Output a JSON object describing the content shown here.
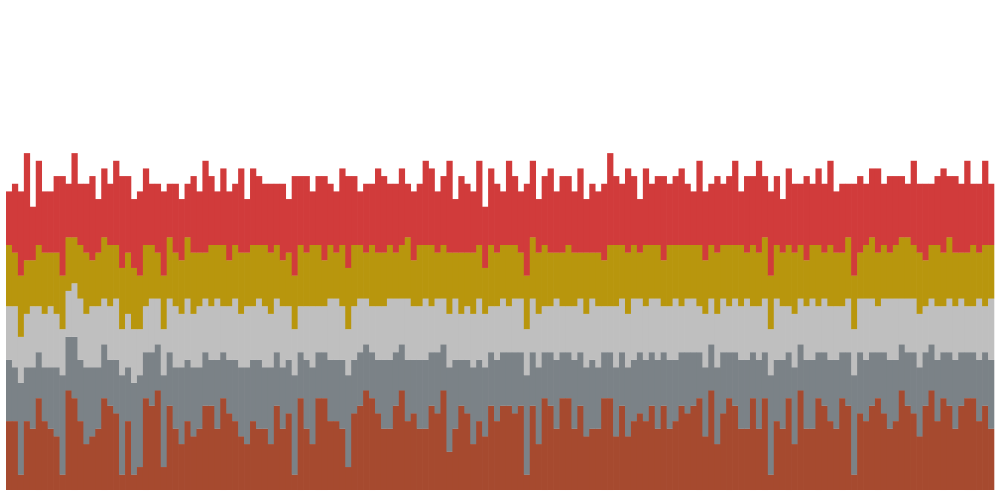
{
  "chart_data": {
    "type": "bar",
    "stacked": true,
    "x_count": 166,
    "ylim": [
      0,
      64
    ],
    "grid": false,
    "legend": "none",
    "series": [
      {
        "color": "#a64a2f",
        "values": [
          9,
          9,
          2,
          9,
          8,
          12,
          9,
          8,
          7,
          2,
          13,
          12,
          9,
          6,
          7,
          8,
          12,
          11,
          10,
          2,
          9,
          2,
          3,
          12,
          11,
          13,
          3,
          11,
          8,
          6,
          9,
          7,
          8,
          11,
          11,
          8,
          12,
          10,
          9,
          7,
          6,
          9,
          8,
          8,
          6,
          11,
          8,
          10,
          2,
          12,
          8,
          6,
          12,
          12,
          9,
          9,
          8,
          3,
          10,
          11,
          13,
          12,
          10,
          8,
          8,
          11,
          13,
          9,
          10,
          8,
          8,
          11,
          10,
          13,
          5,
          8,
          11,
          10,
          6,
          9,
          7,
          11,
          9,
          11,
          11,
          10,
          11,
          2,
          11,
          6,
          12,
          11,
          8,
          12,
          12,
          8,
          11,
          7,
          8,
          8,
          12,
          12,
          7,
          11,
          7,
          9,
          10,
          9,
          11,
          8,
          11,
          8,
          9,
          11,
          10,
          11,
          12,
          7,
          13,
          6,
          10,
          12,
          11,
          8,
          8,
          12,
          8,
          12,
          2,
          9,
          8,
          12,
          6,
          13,
          8,
          8,
          12,
          11,
          9,
          8,
          12,
          11,
          2,
          10,
          9,
          11,
          12,
          10,
          8,
          9,
          13,
          11,
          10,
          7,
          11,
          13,
          9,
          12,
          11,
          8,
          11,
          12,
          12,
          9,
          11,
          8
        ]
      },
      {
        "color": "#7b8287",
        "values": [
          8,
          7,
          12,
          7,
          8,
          6,
          7,
          8,
          9,
          13,
          7,
          8,
          8,
          10,
          9,
          8,
          7,
          6,
          7,
          13,
          7,
          12,
          12,
          6,
          7,
          6,
          12,
          7,
          8,
          10,
          8,
          9,
          8,
          7,
          6,
          9,
          6,
          7,
          8,
          9,
          10,
          8,
          9,
          8,
          10,
          7,
          8,
          7,
          13,
          6,
          9,
          10,
          6,
          6,
          8,
          8,
          9,
          12,
          7,
          7,
          6,
          6,
          7,
          9,
          9,
          7,
          6,
          8,
          7,
          9,
          9,
          7,
          8,
          6,
          11,
          9,
          6,
          7,
          10,
          8,
          9,
          7,
          8,
          7,
          7,
          8,
          7,
          13,
          7,
          10,
          6,
          7,
          9,
          6,
          6,
          9,
          7,
          9,
          9,
          8,
          6,
          6,
          9,
          7,
          9,
          8,
          8,
          8,
          7,
          9,
          7,
          9,
          8,
          7,
          8,
          7,
          6,
          9,
          6,
          10,
          8,
          6,
          7,
          9,
          9,
          6,
          9,
          6,
          13,
          8,
          9,
          6,
          10,
          6,
          9,
          9,
          6,
          7,
          8,
          9,
          6,
          7,
          13,
          8,
          8,
          7,
          6,
          8,
          9,
          8,
          6,
          7,
          8,
          9,
          7,
          6,
          8,
          6,
          7,
          9,
          7,
          6,
          6,
          8,
          7,
          9
        ]
      },
      {
        "color": "#bfbfbf",
        "values": [
          7,
          8,
          6,
          7,
          8,
          6,
          7,
          8,
          7,
          6,
          6,
          7,
          8,
          7,
          8,
          8,
          6,
          7,
          8,
          6,
          7,
          7,
          6,
          6,
          7,
          6,
          6,
          7,
          8,
          7,
          8,
          7,
          8,
          7,
          7,
          8,
          6,
          7,
          8,
          7,
          8,
          7,
          8,
          8,
          7,
          7,
          8,
          7,
          6,
          6,
          7,
          8,
          6,
          6,
          8,
          8,
          7,
          6,
          7,
          7,
          6,
          6,
          7,
          7,
          8,
          7,
          6,
          8,
          7,
          7,
          8,
          6,
          7,
          6,
          7,
          8,
          6,
          7,
          7,
          8,
          7,
          6,
          7,
          7,
          6,
          7,
          7,
          6,
          7,
          7,
          6,
          6,
          8,
          6,
          6,
          7,
          7,
          7,
          8,
          8,
          6,
          6,
          8,
          7,
          7,
          8,
          7,
          7,
          7,
          8,
          6,
          7,
          8,
          6,
          7,
          7,
          6,
          7,
          6,
          7,
          7,
          6,
          7,
          7,
          8,
          6,
          7,
          7,
          6,
          8,
          7,
          6,
          7,
          6,
          7,
          8,
          6,
          7,
          7,
          7,
          6,
          7,
          6,
          7,
          8,
          7,
          6,
          7,
          8,
          8,
          6,
          7,
          7,
          7,
          6,
          6,
          7,
          6,
          7,
          7,
          7,
          6,
          6,
          8,
          6,
          8
        ]
      },
      {
        "color": "#b8960d",
        "values": [
          8,
          7,
          8,
          7,
          6,
          8,
          8,
          7,
          8,
          7,
          7,
          6,
          7,
          8,
          6,
          7,
          8,
          8,
          7,
          8,
          8,
          8,
          7,
          8,
          7,
          6,
          7,
          8,
          7,
          7,
          8,
          8,
          7,
          6,
          8,
          7,
          8,
          6,
          7,
          8,
          7,
          8,
          7,
          8,
          8,
          7,
          6,
          7,
          7,
          8,
          7,
          8,
          8,
          6,
          7,
          6,
          8,
          8,
          8,
          7,
          6,
          8,
          7,
          7,
          7,
          6,
          7,
          8,
          6,
          8,
          7,
          8,
          6,
          7,
          8,
          6,
          8,
          7,
          8,
          7,
          6,
          8,
          7,
          7,
          8,
          7,
          6,
          7,
          8,
          8,
          8,
          7,
          6,
          7,
          8,
          7,
          6,
          8,
          6,
          7,
          6,
          8,
          8,
          7,
          8,
          7,
          6,
          8,
          7,
          7,
          6,
          8,
          7,
          8,
          7,
          7,
          8,
          7,
          7,
          8,
          7,
          8,
          7,
          8,
          6,
          8,
          7,
          8,
          7,
          7,
          7,
          8,
          8,
          7,
          6,
          7,
          8,
          6,
          8,
          7,
          7,
          8,
          7,
          6,
          7,
          8,
          7,
          7,
          6,
          7,
          8,
          8,
          7,
          8,
          6,
          7,
          8,
          7,
          8,
          7,
          6,
          7,
          8,
          6,
          8,
          7
        ]
      },
      {
        "color": "#d13b3b",
        "values": [
          7,
          9,
          11,
          14,
          7,
          11,
          8,
          8,
          10,
          13,
          7,
          11,
          8,
          9,
          11,
          7,
          9,
          8,
          11,
          12,
          10,
          9,
          11,
          10,
          8,
          9,
          11,
          7,
          9,
          8,
          7,
          10,
          8,
          12,
          9,
          7,
          10,
          9,
          8,
          11,
          7,
          10,
          9,
          8,
          9,
          8,
          10,
          7,
          13,
          9,
          10,
          7,
          9,
          11,
          8,
          8,
          10,
          12,
          9,
          7,
          9,
          8,
          11,
          10,
          8,
          9,
          10,
          7,
          9,
          8,
          11,
          10,
          8,
          9,
          12,
          7,
          10,
          9,
          8,
          11,
          8,
          10,
          9,
          7,
          11,
          9,
          8,
          12,
          10,
          7,
          9,
          11,
          8,
          10,
          9,
          8,
          11,
          7,
          9,
          8,
          10,
          12,
          9,
          8,
          11,
          9,
          7,
          10,
          8,
          9,
          11,
          8,
          9,
          10,
          8,
          7,
          11,
          9,
          8,
          10,
          8,
          9,
          11,
          7,
          10,
          9,
          12,
          8,
          11,
          9,
          7,
          10,
          9,
          8,
          11,
          8,
          10,
          9,
          11,
          8,
          9,
          7,
          12,
          10,
          8,
          9,
          11,
          8,
          10,
          9,
          8,
          7,
          11,
          9,
          10,
          8,
          9,
          11,
          8,
          10,
          9,
          12,
          8,
          9,
          11,
          8
        ]
      }
    ]
  }
}
